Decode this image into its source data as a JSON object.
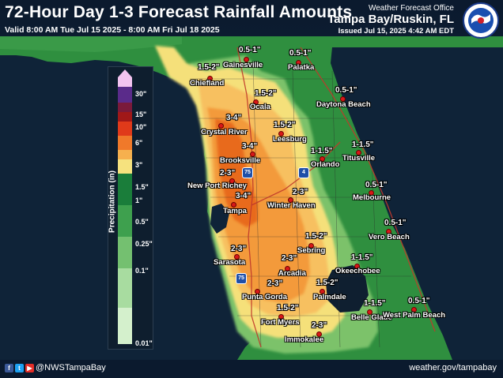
{
  "header": {
    "title": "72-Hour Day 1-3 Forecast Rainfall Amounts",
    "valid": "Valid 8:00 AM Tue Jul 15 2025 - 8:00 AM Fri Jul 18 2025",
    "office_label": "Weather Forecast Office",
    "office": "Tampa Bay/Ruskin, FL",
    "issued": "Issued Jul 15, 2025 4:42 AM EDT"
  },
  "footer": {
    "handle": "@NWSTampaBay",
    "website": "weather.gov/tampabay",
    "social_icons": [
      "facebook-icon",
      "twitter-icon",
      "youtube-icon"
    ]
  },
  "legend": {
    "axis_label": "Precipitation (in)",
    "ticks": [
      "30\"",
      "15\"",
      "10\"",
      "6\"",
      "3\"",
      "1.5\"",
      "1\"",
      "0.5\"",
      "0.25\"",
      "0.1\"",
      "0.01\""
    ],
    "colors": [
      "#5a2b8a",
      "#7a1a3a",
      "#a01818",
      "#e03a1a",
      "#f0792a",
      "#f6b04e",
      "#f6e27e",
      "#1a7d3a",
      "#3ea04e",
      "#74c070",
      "#a8dca0",
      "#d4f0cc"
    ]
  },
  "amounts": [
    {
      "id": "gainesville-area",
      "text": "0.5-1\""
    },
    {
      "id": "palatka-area",
      "text": "0.5-1\""
    },
    {
      "id": "chiefland-area",
      "text": "1.5-2\""
    },
    {
      "id": "ocala-area",
      "text": "1.5-2\""
    },
    {
      "id": "daytona-area",
      "text": "0.5-1\""
    },
    {
      "id": "crystal-river-area",
      "text": "3-4\""
    },
    {
      "id": "leesburg-area",
      "text": "1.5-2\""
    },
    {
      "id": "brooksville-area",
      "text": "3-4\""
    },
    {
      "id": "orlando-area",
      "text": "1-1.5\""
    },
    {
      "id": "titusville-area",
      "text": "1-1.5\""
    },
    {
      "id": "new-port-richey-area",
      "text": "2-3\""
    },
    {
      "id": "melbourne-area",
      "text": "0.5-1\""
    },
    {
      "id": "tampa-area",
      "text": "3-4\""
    },
    {
      "id": "winter-haven-area",
      "text": "2-3\""
    },
    {
      "id": "vero-beach-area",
      "text": "0.5-1\""
    },
    {
      "id": "sebring-area",
      "text": "1.5-2\""
    },
    {
      "id": "sarasota-area",
      "text": "2-3\""
    },
    {
      "id": "arcadia-area",
      "text": "2-3\""
    },
    {
      "id": "okeechobee-area",
      "text": "1-1.5\""
    },
    {
      "id": "punta-gorda-area",
      "text": "2-3\""
    },
    {
      "id": "palmdale-area",
      "text": "1.5-2\""
    },
    {
      "id": "belle-glade-area",
      "text": "1-1.5\""
    },
    {
      "id": "west-palm-area",
      "text": "0.5-1\""
    },
    {
      "id": "fort-myers-area",
      "text": "1.5-2\""
    },
    {
      "id": "immokalee-area",
      "text": "2-3\""
    }
  ],
  "cities": [
    "Gainesville",
    "Palatka",
    "Chiefland",
    "Ocala",
    "Daytona Beach",
    "Crystal River",
    "Leesburg",
    "Brooksville",
    "Orlando",
    "Titusville",
    "New Port Richey",
    "Melbourne",
    "Tampa",
    "Winter Haven",
    "Vero Beach",
    "Sebring",
    "Sarasota",
    "Arcadia",
    "Okeechobee",
    "Punta Gorda",
    "Palmdale",
    "Belle Glade",
    "West Palm Beach",
    "Fort Myers",
    "Immokalee"
  ],
  "highways": [
    "75",
    "4",
    "75"
  ]
}
